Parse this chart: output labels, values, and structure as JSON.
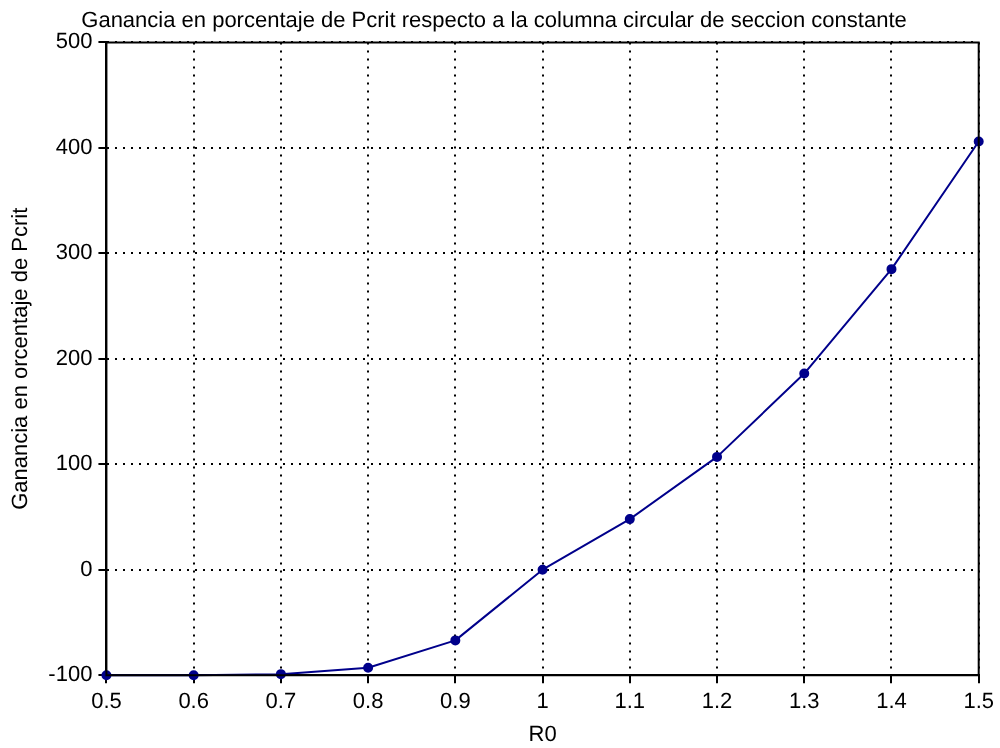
{
  "chart_data": {
    "type": "line",
    "title": "Ganancia en porcentaje de Pcrit respecto a la columna circular de seccion constante",
    "xlabel": "R0",
    "ylabel": "Ganancia en orcentaje de Pcrit",
    "x": [
      0.5,
      0.6,
      0.7,
      0.8,
      0.9,
      1.0,
      1.1,
      1.2,
      1.3,
      1.4,
      1.5
    ],
    "series": [
      {
        "color": "#00008b",
        "values": [
          -100,
          -100,
          -99,
          -93,
          -67,
          0,
          48,
          107,
          186,
          285,
          406
        ]
      }
    ],
    "xlim": [
      0.5,
      1.5
    ],
    "xticks": [
      0.5,
      0.6,
      0.7,
      0.8,
      0.9,
      1,
      1.1,
      1.2,
      1.3,
      1.4,
      1.5
    ],
    "ylim": [
      -100,
      500
    ],
    "yticks": [
      -100,
      0,
      100,
      200,
      300,
      400,
      500
    ],
    "grid": true,
    "legend": false,
    "marker": "circle",
    "line_style": "solid"
  }
}
